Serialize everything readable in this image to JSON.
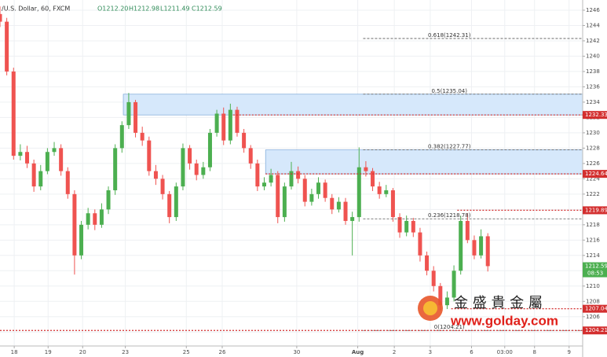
{
  "chart_data": {
    "type": "candlestick",
    "title": "/U.S. Dollar, 60, FXCM",
    "ohlc_readout": [
      "O1212.20",
      "H1212.98",
      "L1211.49",
      "C1212.59"
    ],
    "up_color": "#4caf50",
    "down_color": "#ef5350",
    "open": [
      1245.5,
      1244.5,
      1238,
      1227,
      1227.5,
      1226,
      1223,
      1225,
      1227.5,
      1228,
      1225,
      1222,
      1214,
      1218,
      1219.5,
      1218,
      1220,
      1222.5,
      1228,
      1231,
      1234,
      1230,
      1229,
      1225,
      1224,
      1222,
      1219,
      1223,
      1228,
      1226,
      1224.5,
      1225.5,
      1230,
      1232.5,
      1229,
      1233,
      1230,
      1228,
      1226,
      1223,
      1223.5,
      1224.5,
      1219,
      1223,
      1225,
      1224,
      1221,
      1222,
      1223.5,
      1221.5,
      1220,
      1221,
      1218.5,
      1219,
      1225.5,
      1225,
      1223,
      1222,
      1222.5,
      1219,
      1217,
      1218.5,
      1217,
      1214,
      1212,
      1210,
      1207.5,
      1208.5,
      1212,
      1218.5,
      1216,
      1214,
      1216.5
    ],
    "high": [
      1246.5,
      1245,
      1238.5,
      1228.5,
      1228.3,
      1226.5,
      1225.8,
      1228,
      1228.8,
      1228.5,
      1225.5,
      1222.5,
      1218.5,
      1220.2,
      1220,
      1220.8,
      1223,
      1228.5,
      1231.5,
      1235.2,
      1234.3,
      1230.8,
      1229.5,
      1225.8,
      1224.5,
      1222.4,
      1223.5,
      1228.6,
      1228.4,
      1226.5,
      1226.2,
      1230.5,
      1233,
      1233.3,
      1233.8,
      1233.4,
      1230.5,
      1228.4,
      1226.5,
      1224.2,
      1225.3,
      1225,
      1223.5,
      1226.2,
      1225.6,
      1224.5,
      1222.7,
      1224.2,
      1223.9,
      1222,
      1221.6,
      1221.5,
      1219.7,
      1228.1,
      1226.3,
      1225.4,
      1223.6,
      1223.2,
      1222.8,
      1219.5,
      1219.2,
      1218.9,
      1217.6,
      1214.5,
      1212.6,
      1210.4,
      1209.3,
      1212.7,
      1219.2,
      1219.5,
      1216.6,
      1217.4,
      1216.9
    ],
    "low": [
      1243.8,
      1237.5,
      1226.5,
      1226.4,
      1225.4,
      1222.3,
      1222.5,
      1224.6,
      1227,
      1224.4,
      1221.4,
      1211.5,
      1213.5,
      1217.4,
      1217.3,
      1217.6,
      1219.4,
      1221.9,
      1227.4,
      1230.5,
      1229.4,
      1228.3,
      1224.4,
      1223.2,
      1221.3,
      1218.2,
      1218.5,
      1222.5,
      1225.2,
      1223.8,
      1224,
      1225,
      1229.5,
      1228.4,
      1228.5,
      1229.5,
      1227.4,
      1225.3,
      1222.4,
      1222.5,
      1223,
      1218.2,
      1218.4,
      1222.6,
      1223.4,
      1220.4,
      1220.5,
      1221.4,
      1221,
      1219.4,
      1219.6,
      1218,
      1214,
      1218.4,
      1224.3,
      1222.4,
      1221.4,
      1221.6,
      1218.4,
      1216.3,
      1216.5,
      1216.4,
      1213.2,
      1211.4,
      1209.3,
      1206.8,
      1207,
      1208,
      1211.5,
      1215.6,
      1213.5,
      1213.6,
      1211.9
    ],
    "close": [
      1244.5,
      1238,
      1227,
      1227.5,
      1226,
      1223,
      1225,
      1227.5,
      1228,
      1225,
      1222,
      1214,
      1218,
      1219.5,
      1218,
      1220,
      1222.5,
      1228,
      1231,
      1234,
      1230,
      1229,
      1225,
      1224,
      1222,
      1219,
      1223,
      1228,
      1226,
      1224.5,
      1225.5,
      1230,
      1232.5,
      1229,
      1233,
      1230,
      1228,
      1226,
      1223,
      1223.5,
      1224.5,
      1219,
      1223,
      1225,
      1224,
      1221,
      1222,
      1223.5,
      1221.5,
      1220,
      1221,
      1218.5,
      1219,
      1225.5,
      1225,
      1223,
      1222,
      1222.5,
      1219,
      1217,
      1218.5,
      1217,
      1214,
      1212,
      1210,
      1207.5,
      1208.5,
      1212,
      1218.5,
      1216,
      1214,
      1216.5,
      1212.6
    ],
    "xlim": [
      0,
      86
    ],
    "xticks": [
      {
        "value": 2.1,
        "label": "18"
      },
      {
        "value": 7.1,
        "label": "19"
      },
      {
        "value": 12.2,
        "label": "20"
      },
      {
        "value": 18.5,
        "label": "23"
      },
      {
        "value": 27.5,
        "label": "25"
      },
      {
        "value": 32.8,
        "label": "26"
      },
      {
        "value": 43.8,
        "label": "30"
      },
      {
        "value": 52.8,
        "label": "Aug"
      },
      {
        "value": 58.2,
        "label": "2"
      },
      {
        "value": 63.5,
        "label": "3"
      },
      {
        "value": 69.6,
        "label": "6"
      },
      {
        "value": 74.5,
        "label": "03:00"
      },
      {
        "value": 78.9,
        "label": "8"
      },
      {
        "value": 84,
        "label": "9"
      }
    ],
    "ylim": [
      1202.18,
      1247.33
    ],
    "yticks": [
      1204,
      1206,
      1208,
      1210,
      1212,
      1214,
      1216,
      1218,
      1220,
      1222,
      1224,
      1226,
      1228,
      1230,
      1232,
      1234,
      1236,
      1238,
      1240,
      1242,
      1244,
      1246
    ],
    "grid": true,
    "zones": [
      {
        "from": 1232.33,
        "to": 1235.04,
        "x_start": 18.2
      },
      {
        "from": 1224.64,
        "to": 1227.77,
        "x_start": 39.2
      }
    ],
    "levels": [
      {
        "value": 1232.33,
        "x_start": 34.4
      },
      {
        "value": 1224.64,
        "x_start": 39.2
      },
      {
        "value": 1219.89,
        "x_start": 67.5
      },
      {
        "value": 1207.04,
        "x_start": 66.6
      },
      {
        "value": 1204.21,
        "x_start": 0
      }
    ],
    "fib_levels": [
      {
        "value": 1242.31,
        "label": "0.618(1242.31)"
      },
      {
        "value": 1235.04,
        "label": "0.5(1235.04)"
      },
      {
        "value": 1227.77,
        "label": "0.382(1227.77)"
      },
      {
        "value": 1218.78,
        "label": "0.236(1218.78)"
      },
      {
        "value": 1204.21,
        "label": "0(1204.21)"
      }
    ],
    "fib_x_start": 53.6,
    "current_price": 1212.59,
    "countdown": "08:53",
    "watermark": {
      "name": "金 盛 貴 金 屬",
      "url": "www.golday.com"
    }
  }
}
